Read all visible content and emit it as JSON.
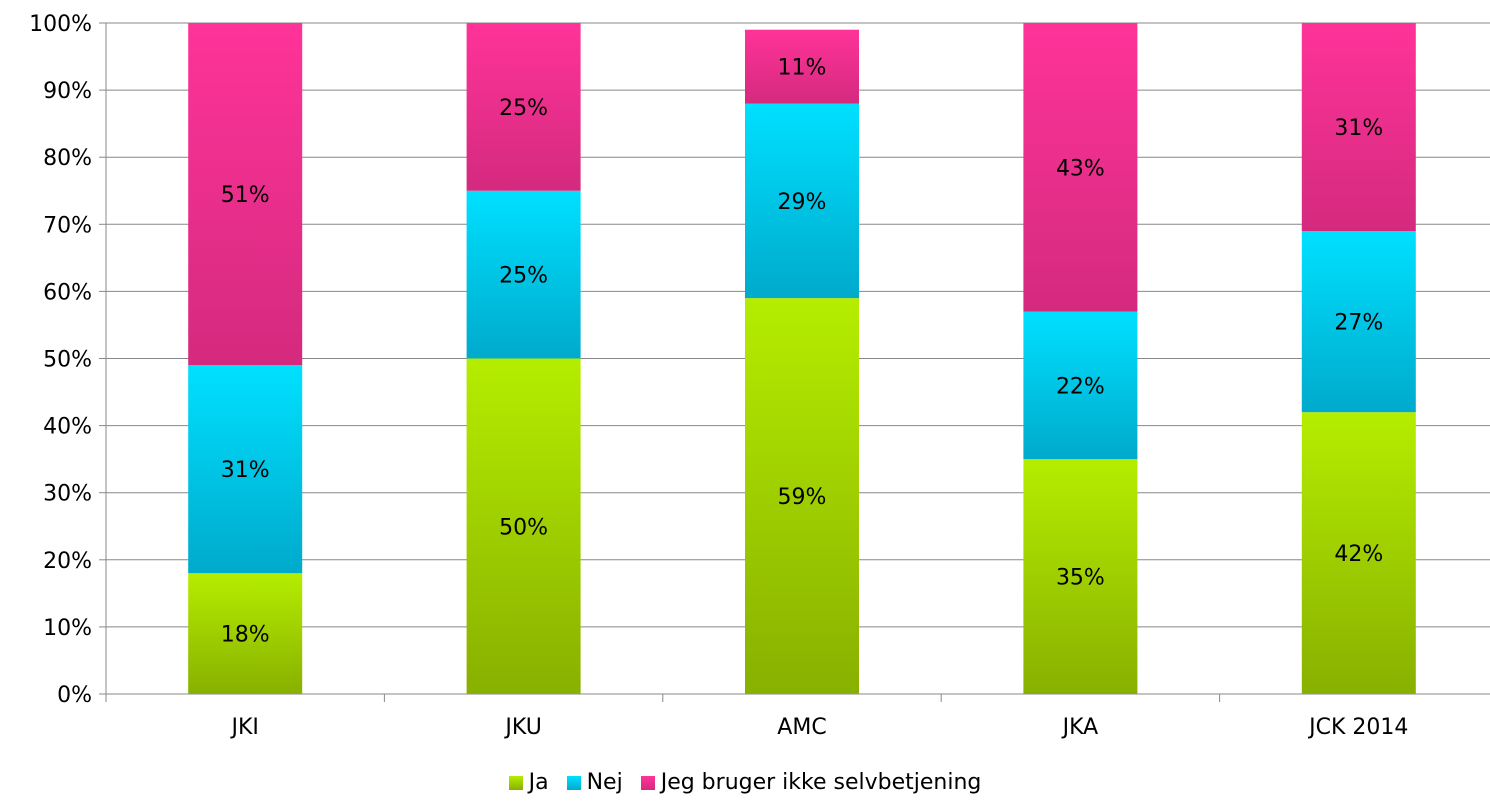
{
  "chart_data": {
    "type": "bar",
    "stacked": true,
    "categories": [
      "JKI",
      "JKU",
      "AMC",
      "JKA",
      "JCK 2014"
    ],
    "series": [
      {
        "name": "Ja",
        "values": [
          18,
          50,
          59,
          35,
          42
        ],
        "labels": [
          "18%",
          "50%",
          "59%",
          "35%",
          "42%"
        ],
        "color_top": "#b5ed00",
        "color_bottom": "#88b000"
      },
      {
        "name": "Nej",
        "values": [
          31,
          25,
          29,
          22,
          27
        ],
        "labels": [
          "31%",
          "25%",
          "29%",
          "22%",
          "27%"
        ],
        "color_top": "#00e0ff",
        "color_bottom": "#00aacc"
      },
      {
        "name": "Jeg bruger ikke selvbetjening",
        "values": [
          51,
          25,
          11,
          43,
          31
        ],
        "labels": [
          "51%",
          "25%",
          "11%",
          "43%",
          "31%"
        ],
        "color_top": "#ff3399",
        "color_bottom": "#d42a7e"
      }
    ],
    "y_ticks": [
      "0%",
      "10%",
      "20%",
      "30%",
      "40%",
      "50%",
      "60%",
      "70%",
      "80%",
      "90%",
      "100%"
    ],
    "ylim": [
      0,
      100
    ],
    "grid": true,
    "legend_position": "bottom"
  }
}
